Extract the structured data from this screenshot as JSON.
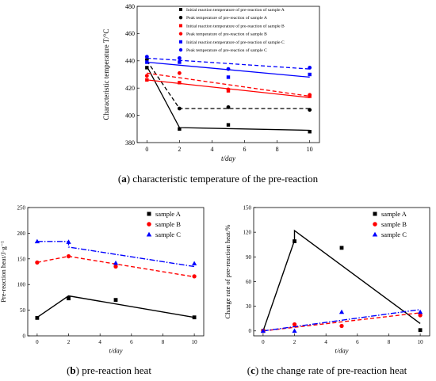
{
  "colors": {
    "black": "#000000",
    "red": "#ff0000",
    "blue": "#0000ff"
  },
  "captions": [
    {
      "letter": "a",
      "text": "characteristic temperature of the pre-reaction"
    },
    {
      "letter": "b",
      "text": "pre-reaction heat"
    },
    {
      "letter": "c",
      "text": "the change rate of pre-reaction heat"
    }
  ],
  "chart_data": [
    {
      "type": "scatter",
      "xlabel": "t/day",
      "ylabel": "Characteristic temperature T/°C",
      "xlim": [
        -0.6,
        10.6
      ],
      "ylim": [
        380,
        480
      ],
      "xticks": [
        0,
        2,
        4,
        6,
        8,
        10
      ],
      "yticks": [
        380,
        400,
        420,
        440,
        460,
        480
      ],
      "legend": "top-right",
      "series": [
        {
          "name": "Initial reaction temperature of pre-reaction of sample A",
          "color": "#000000",
          "marker": "square",
          "line": "solid",
          "points": [
            [
              0,
              435
            ],
            [
              2,
              390
            ],
            [
              5,
              393
            ],
            [
              10,
              388
            ]
          ],
          "fit": [
            [
              0,
              436
            ],
            [
              2,
              391
            ],
            [
              10,
              389
            ]
          ]
        },
        {
          "name": "Peak temperature of pre-reaction of sample A",
          "color": "#000000",
          "marker": "circle",
          "line": "dashed",
          "points": [
            [
              0,
              441
            ],
            [
              2,
              405
            ],
            [
              5,
              406
            ],
            [
              10,
              404
            ]
          ],
          "fit": [
            [
              0,
              440
            ],
            [
              2,
              405
            ],
            [
              10,
              405
            ]
          ]
        },
        {
          "name": "Initial reaction temperature of pre-reaction of sample B",
          "color": "#ff0000",
          "marker": "square",
          "line": "solid",
          "points": [
            [
              0,
              426
            ],
            [
              2,
              424
            ],
            [
              5,
              418
            ],
            [
              10,
              414
            ]
          ],
          "fit": [
            [
              0,
              426
            ],
            [
              10,
              413
            ]
          ]
        },
        {
          "name": "Peak temperature of pre-reaction of sample B",
          "color": "#ff0000",
          "marker": "circle",
          "line": "dashed",
          "points": [
            [
              0,
              429
            ],
            [
              2,
              431
            ],
            [
              5,
              419
            ],
            [
              10,
              415
            ]
          ],
          "fit": [
            [
              0,
              431
            ],
            [
              10,
              414
            ]
          ]
        },
        {
          "name": "Initial reaction temperature of pre-reaction of sample C",
          "color": "#0000ff",
          "marker": "square",
          "line": "solid",
          "points": [
            [
              0,
              439
            ],
            [
              2,
              439
            ],
            [
              5,
              428
            ],
            [
              10,
              430
            ]
          ],
          "fit": [
            [
              0,
              439
            ],
            [
              10,
              428
            ]
          ]
        },
        {
          "name": "Peak temperature of pre-reaction of sample C",
          "color": "#0000ff",
          "marker": "circle",
          "line": "dashed",
          "points": [
            [
              0,
              443
            ],
            [
              2,
              442
            ],
            [
              5,
              434
            ],
            [
              10,
              435
            ]
          ],
          "fit": [
            [
              0,
              442
            ],
            [
              10,
              434
            ]
          ]
        }
      ]
    },
    {
      "type": "scatter",
      "xlabel": "t/day",
      "ylabel": "Pre-reaction heat/J·g⁻¹",
      "xlim": [
        -0.6,
        10.6
      ],
      "ylim": [
        0,
        250
      ],
      "xticks": [
        0,
        2,
        4,
        6,
        8,
        10
      ],
      "yticks": [
        0,
        50,
        100,
        150,
        200,
        250
      ],
      "legend": "top-right",
      "series": [
        {
          "name": "sample A",
          "color": "#000000",
          "marker": "square",
          "line": "solid",
          "points": [
            [
              0,
              35
            ],
            [
              2,
              73
            ],
            [
              5,
              70
            ],
            [
              10,
              36
            ]
          ],
          "fit": [
            [
              0,
              36
            ],
            [
              2,
              78
            ],
            [
              10,
              36
            ]
          ]
        },
        {
          "name": "sample B",
          "color": "#ff0000",
          "marker": "circle",
          "line": "dashed",
          "points": [
            [
              0,
              143
            ],
            [
              2,
              155
            ],
            [
              5,
              135
            ],
            [
              10,
              116
            ]
          ],
          "fit": [
            [
              0,
              143
            ],
            [
              2,
              155
            ],
            [
              10,
              115
            ]
          ]
        },
        {
          "name": "sample C",
          "color": "#0000ff",
          "marker": "triangle",
          "line": "dashdot",
          "points": [
            [
              0,
              184
            ],
            [
              2,
              183
            ],
            [
              5,
              142
            ],
            [
              10,
              141
            ]
          ],
          "fit": [
            [
              0,
              184
            ],
            [
              2,
              184
            ],
            [
              2,
              173
            ],
            [
              10,
              135
            ]
          ]
        }
      ]
    },
    {
      "type": "scatter",
      "xlabel": "t/day",
      "ylabel": "Change rate of pre-reaction heat/%",
      "xlim": [
        -0.6,
        10.6
      ],
      "ylim": [
        -6,
        150
      ],
      "xticks": [
        0,
        2,
        4,
        6,
        8,
        10
      ],
      "yticks": [
        0,
        30,
        60,
        90,
        120,
        150
      ],
      "legend": "top-right",
      "series": [
        {
          "name": "sample A",
          "color": "#000000",
          "marker": "square",
          "line": "solid",
          "points": [
            [
              0,
              0
            ],
            [
              2,
              109
            ],
            [
              5,
              101
            ],
            [
              10,
              1
            ]
          ],
          "fit": [
            [
              0,
              0
            ],
            [
              2,
              110
            ],
            [
              2,
              122
            ],
            [
              10,
              9
            ]
          ]
        },
        {
          "name": "sample B",
          "color": "#ff0000",
          "marker": "circle",
          "line": "dashed",
          "points": [
            [
              0,
              0
            ],
            [
              2,
              8
            ],
            [
              5,
              6
            ],
            [
              10,
              19
            ]
          ],
          "fit": [
            [
              0,
              0
            ],
            [
              10,
              22
            ]
          ]
        },
        {
          "name": "sample C",
          "color": "#0000ff",
          "marker": "triangle",
          "line": "dashdot",
          "points": [
            [
              0,
              0
            ],
            [
              2,
              0
            ],
            [
              5,
              23
            ],
            [
              10,
              23
            ]
          ],
          "fit": [
            [
              0,
              0
            ],
            [
              10,
              26
            ]
          ]
        }
      ]
    }
  ]
}
